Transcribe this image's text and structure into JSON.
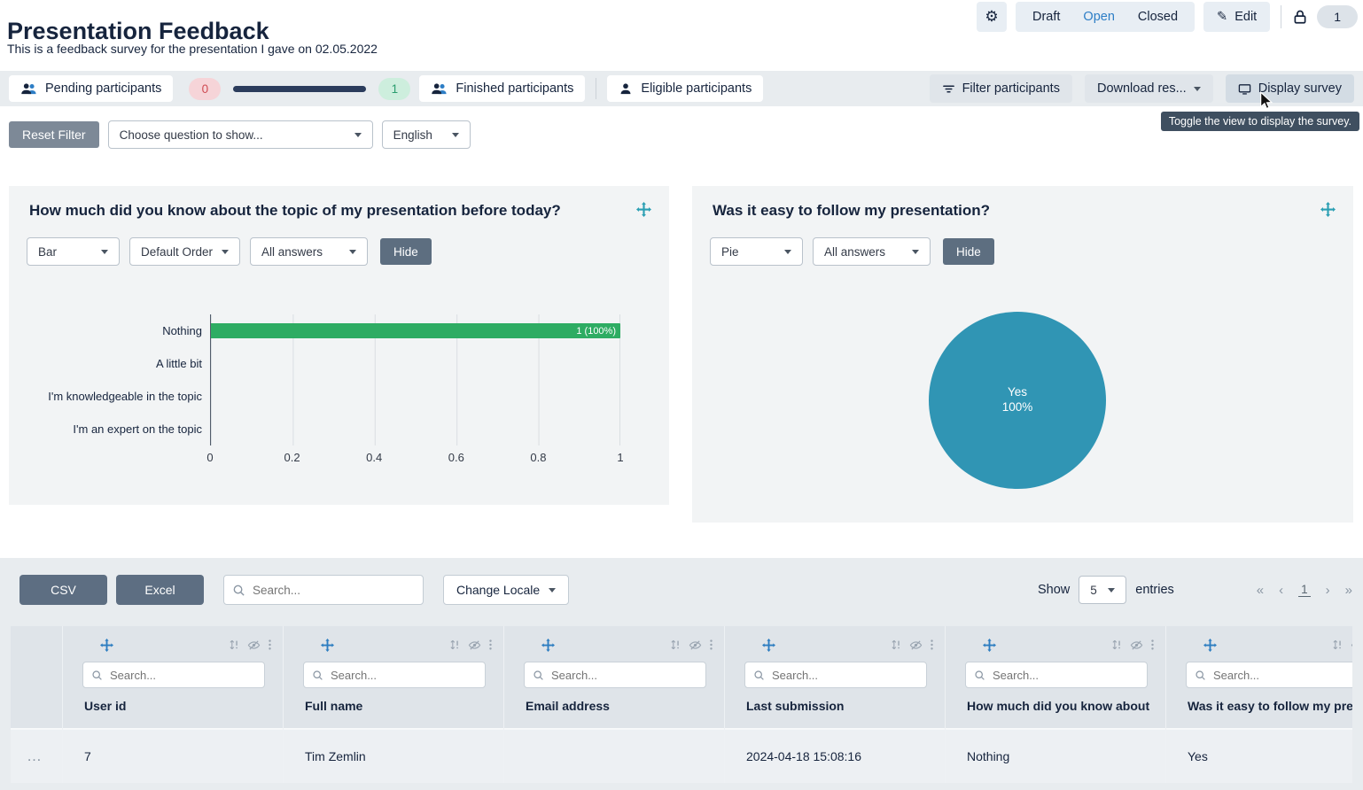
{
  "colors": {
    "accent_blue": "#2d7ec6",
    "navy_text": "#16243d",
    "bar_green": "#2eac63",
    "pie_blue": "#3095b4",
    "slate_button": "#5d6e82",
    "pending_badge_bg": "#f6d4d8",
    "pending_badge_text": "#cf4b52",
    "finished_badge_bg": "#cdeedd",
    "finished_badge_text": "#2a9d6e",
    "tooltip_bg": "#3f4f60"
  },
  "header": {
    "title": "Presentation Feedback",
    "subtitle": "This is a feedback survey for the presentation I gave on 02.05.2022",
    "status_segments": [
      "Draft",
      "Open",
      "Closed"
    ],
    "active_status": "Open",
    "edit_label": "Edit",
    "count_badge": "1"
  },
  "toolbar": {
    "pending_label": "Pending participants",
    "pending_count": "0",
    "finished_count": "1",
    "finished_label": "Finished participants",
    "eligible_label": "Eligible participants",
    "filter_label": "Filter participants",
    "download_label": "Download res...",
    "display_label": "Display survey",
    "display_tooltip": "Toggle the view to display the survey."
  },
  "filter_bar": {
    "reset_label": "Reset Filter",
    "question_select_value": "Choose question to show...",
    "language_select_value": "English"
  },
  "charts": [
    {
      "title": "How much did you know about the topic of my presentation before today?",
      "chart_type_value": "Bar",
      "order_value": "Default Order",
      "answers_value": "All answers",
      "hide_label": "Hide",
      "chart_data": {
        "type": "bar",
        "orientation": "horizontal",
        "categories": [
          "Nothing",
          "A little bit",
          "I'm knowledgeable in the topic",
          "I'm an expert on the topic"
        ],
        "values": [
          1,
          0,
          0,
          0
        ],
        "bar_labels": [
          "1 (100%)",
          "",
          "",
          ""
        ],
        "x_ticks": [
          "0",
          "0.2",
          "0.4",
          "0.6",
          "0.8",
          "1"
        ],
        "xlim": [
          0,
          1
        ],
        "bar_color": "#2eac63",
        "grid": true
      }
    },
    {
      "title": "Was it easy to follow my presentation?",
      "chart_type_value": "Pie",
      "answers_value": "All answers",
      "hide_label": "Hide",
      "chart_data": {
        "type": "pie",
        "labels": [
          "Yes"
        ],
        "values": [
          100
        ],
        "slice_label_lines": [
          "Yes",
          "100%"
        ],
        "colors": [
          "#3095b4"
        ]
      }
    }
  ],
  "table": {
    "csv_label": "CSV",
    "excel_label": "Excel",
    "global_search_placeholder": "Search...",
    "change_locale_label": "Change Locale",
    "show_label": "Show",
    "page_size_value": "5",
    "entries_label": "entries",
    "pagination": {
      "first": "«",
      "prev": "‹",
      "page": "1",
      "next": "›",
      "last": "»"
    },
    "columns": [
      {
        "title": "User id",
        "search_placeholder": "Search..."
      },
      {
        "title": "Full name",
        "search_placeholder": "Search..."
      },
      {
        "title": "Email address",
        "search_placeholder": "Search..."
      },
      {
        "title": "Last submission",
        "search_placeholder": "Search..."
      },
      {
        "title": "How much did you know about",
        "search_placeholder": "Search..."
      },
      {
        "title": "Was it easy to follow my pres",
        "search_placeholder": "Search..."
      }
    ],
    "rows": [
      {
        "expander": "…",
        "cells": [
          "7",
          "Tim Zemlin",
          "",
          "2024-04-18 15:08:16",
          "Nothing",
          "Yes"
        ]
      }
    ]
  }
}
